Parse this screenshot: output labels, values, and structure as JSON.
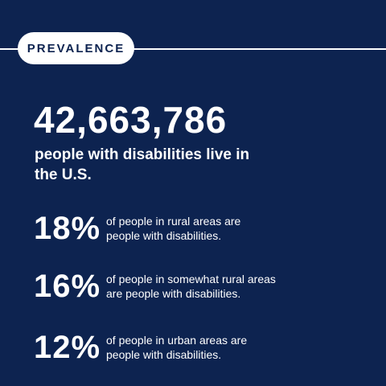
{
  "header": {
    "label": "PREVALENCE"
  },
  "headline": {
    "number": "42,663,786",
    "caption": "people with disabilities live in the U.S."
  },
  "stats": [
    {
      "value": "18%",
      "text": "of people in rural areas are people with disabilities."
    },
    {
      "value": "16%",
      "text": "of people in somewhat rural areas are people with disabilities."
    },
    {
      "value": "12%",
      "text": "of people in urban areas are people with disabilities."
    }
  ],
  "colors": {
    "background": "#0d2350",
    "text": "#ffffff",
    "pill_text": "#0d2350"
  }
}
